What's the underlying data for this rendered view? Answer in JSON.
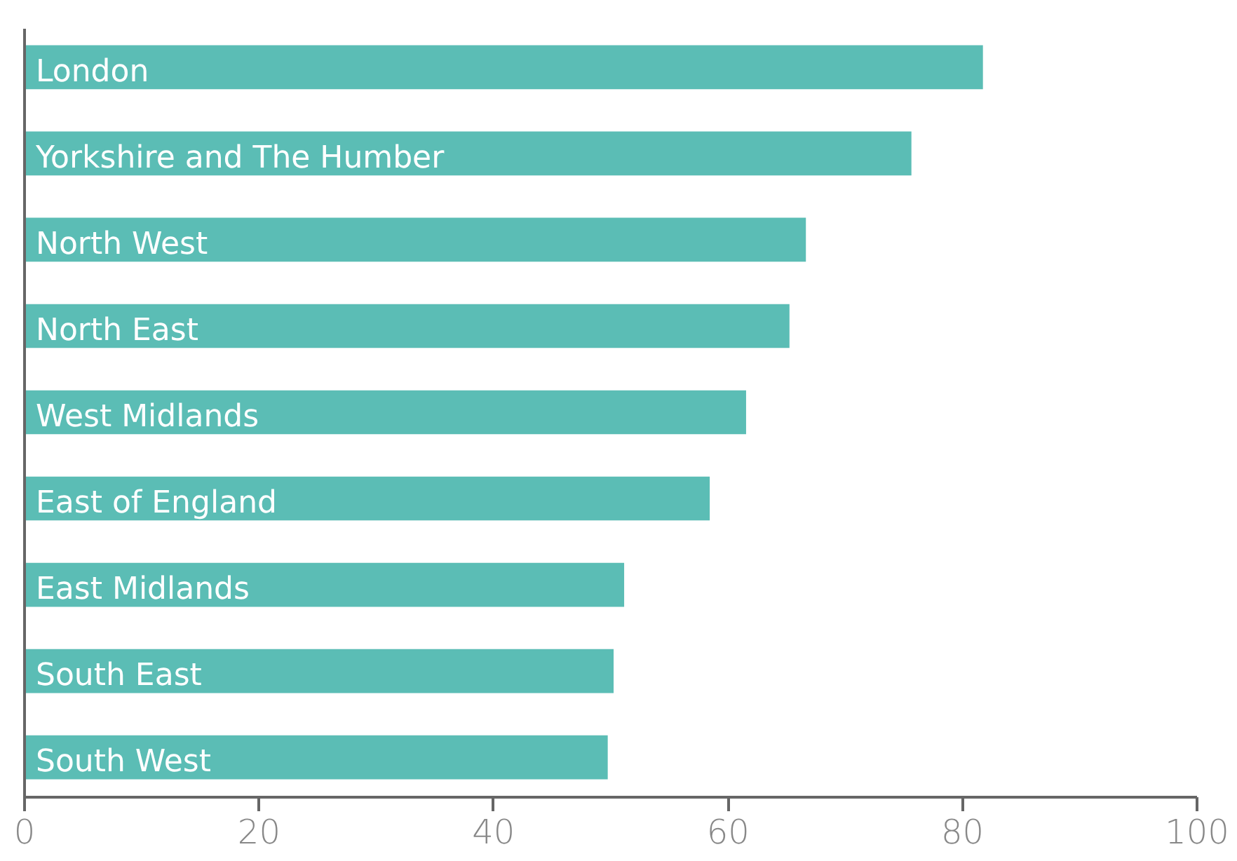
{
  "chart_data": {
    "type": "bar",
    "orientation": "horizontal",
    "categories": [
      "London",
      "Yorkshire and The Humber",
      "North West",
      "North East",
      "West Midlands",
      "East of England",
      "East Midlands",
      "South East",
      "South West"
    ],
    "values": [
      81.8,
      75.7,
      66.7,
      65.3,
      61.6,
      58.5,
      51.2,
      50.3,
      49.8
    ],
    "color": "#5bbdb5",
    "xlim": [
      0,
      100
    ],
    "xticks": [
      0,
      20,
      40,
      60,
      80,
      100
    ],
    "grid": false
  }
}
